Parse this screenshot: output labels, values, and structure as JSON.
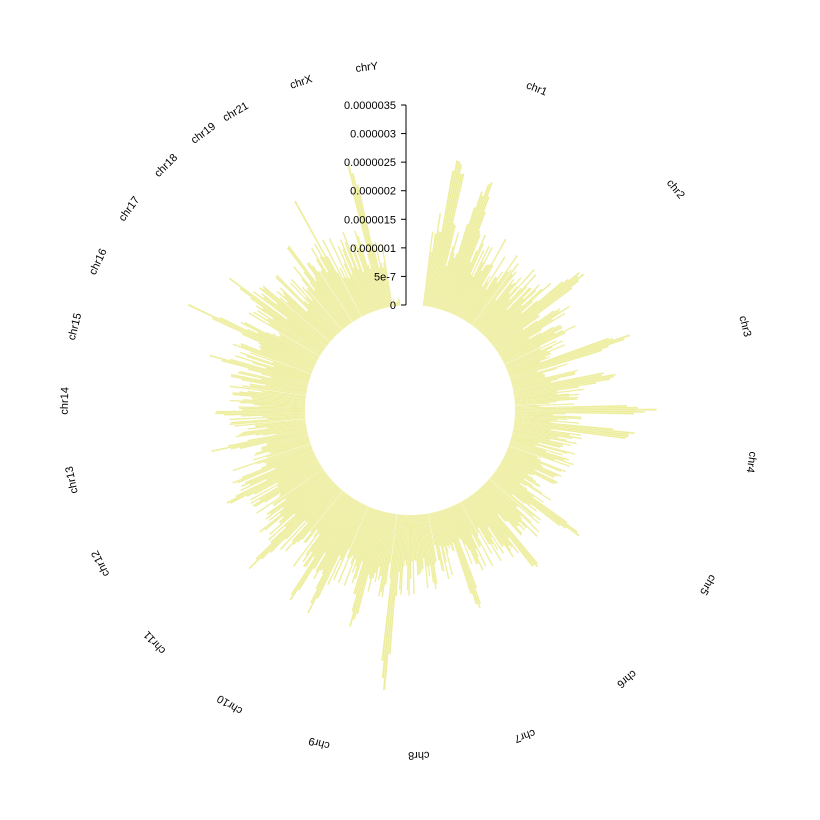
{
  "chart_data": {
    "type": "bar",
    "layout": "circular",
    "title": "",
    "bar_color": "#eeeea0",
    "axis": {
      "ylim": [
        0,
        3.5e-06
      ],
      "tick_values": [
        0,
        5e-07,
        1e-06,
        1.5e-06,
        2e-06,
        2.5e-06,
        3e-06,
        3.5e-06
      ],
      "tick_labels": [
        "0",
        "5e-7",
        "0.000001",
        "0.0000015",
        "0.000002",
        "0.0000025",
        "0.000003",
        "0.0000035"
      ]
    },
    "chromosomes": [
      {
        "name": "chr1",
        "bins": 58,
        "base": 1e-06,
        "spread": 1e-06,
        "peaks": [
          [
            0.15,
            3e-06
          ],
          [
            0.42,
            2.6e-06
          ]
        ]
      },
      {
        "name": "chr2",
        "bins": 56,
        "base": 9e-07,
        "spread": 9e-07,
        "peaks": [
          [
            0.55,
            2.2e-06
          ]
        ]
      },
      {
        "name": "chr3",
        "bins": 46,
        "base": 8e-07,
        "spread": 9e-07,
        "peaks": [
          [
            0.3,
            2.4e-06
          ],
          [
            0.7,
            2.1e-06
          ]
        ]
      },
      {
        "name": "chr4",
        "bins": 44,
        "base": 7e-07,
        "spread": 8e-07,
        "peaks": [
          [
            0.1,
            2.7e-06
          ],
          [
            0.4,
            2.4e-06
          ]
        ]
      },
      {
        "name": "chr5",
        "bins": 42,
        "base": 7e-07,
        "spread": 7e-07,
        "peaks": [
          [
            0.8,
            2e-06
          ]
        ]
      },
      {
        "name": "chr6",
        "bins": 40,
        "base": 8e-07,
        "spread": 8e-07,
        "peaks": [
          [
            0.5,
            2e-06
          ]
        ]
      },
      {
        "name": "chr7",
        "bins": 37,
        "base": 8e-07,
        "spread": 7e-07,
        "peaks": [
          [
            0.5,
            2.1e-06
          ]
        ]
      },
      {
        "name": "chr8",
        "bins": 34,
        "base": 1e-06,
        "spread": 7e-07,
        "peaks": [
          [
            0.92,
            3.4e-06
          ]
        ]
      },
      {
        "name": "chr9",
        "bins": 32,
        "base": 1.1e-06,
        "spread": 7e-07,
        "peaks": [
          [
            0.5,
            2.3e-06
          ]
        ]
      },
      {
        "name": "chr10",
        "bins": 32,
        "base": 1.1e-06,
        "spread": 8e-07,
        "peaks": [
          [
            0.2,
            2.4e-06
          ],
          [
            0.55,
            2.3e-06
          ]
        ]
      },
      {
        "name": "chr11",
        "bins": 32,
        "base": 1.1e-06,
        "spread": 8e-07,
        "peaks": [
          [
            0.35,
            2.4e-06
          ]
        ]
      },
      {
        "name": "chr12",
        "bins": 31,
        "base": 1e-06,
        "spread": 8e-07,
        "peaks": [
          [
            0.45,
            2e-06
          ]
        ]
      },
      {
        "name": "chr13",
        "bins": 27,
        "base": 8e-07,
        "spread": 7e-07,
        "peaks": [
          [
            0.5,
            1.8e-06
          ]
        ]
      },
      {
        "name": "chr14",
        "bins": 25,
        "base": 9e-07,
        "spread": 7e-07,
        "peaks": [
          [
            0.3,
            1.8e-06
          ]
        ]
      },
      {
        "name": "chr15",
        "bins": 24,
        "base": 9e-07,
        "spread": 8e-07,
        "peaks": [
          [
            0.6,
            2e-06
          ]
        ]
      },
      {
        "name": "chr16",
        "bins": 21,
        "base": 1e-06,
        "spread": 8e-07,
        "peaks": [
          [
            0.5,
            2.5e-06
          ]
        ]
      },
      {
        "name": "chr17",
        "bins": 19,
        "base": 1.1e-06,
        "spread": 8e-07,
        "peaks": [
          [
            0.55,
            2.4e-06
          ]
        ]
      },
      {
        "name": "chr18",
        "bins": 18,
        "base": 9e-07,
        "spread": 7e-07,
        "peaks": [
          [
            0.5,
            1.8e-06
          ]
        ]
      },
      {
        "name": "chr19",
        "bins": 14,
        "base": 1.1e-06,
        "spread": 8e-07,
        "peaks": [
          [
            0.5,
            2.2e-06
          ]
        ]
      },
      {
        "name": "chr21",
        "bins": 11,
        "base": 1.1e-06,
        "spread": 7e-07,
        "peaks": [
          [
            0.8,
            2.7e-06
          ]
        ]
      },
      {
        "name": "chrX",
        "bins": 36,
        "base": 1e-06,
        "spread": 9e-07,
        "peaks": [
          [
            0.75,
            2.8e-06
          ]
        ]
      },
      {
        "name": "chrY",
        "bins": 8,
        "base": 1e-07,
        "spread": 1e-07,
        "peaks": []
      }
    ]
  }
}
